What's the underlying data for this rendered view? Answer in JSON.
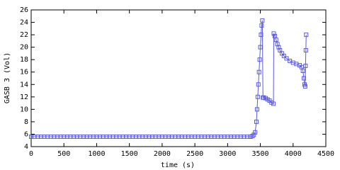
{
  "chart_data": {
    "type": "line",
    "marker": "square",
    "color": "#5a5ae6",
    "x_label": "time (s)",
    "y_label": "GASB 3 (Vol)",
    "xlim": [
      0,
      4500
    ],
    "xticks": [
      0,
      500,
      1000,
      1500,
      2000,
      2500,
      3000,
      3500,
      4000,
      4500
    ],
    "ylim": [
      4,
      26
    ],
    "yticks": [
      4,
      6,
      8,
      10,
      12,
      14,
      16,
      18,
      20,
      22,
      24,
      26
    ],
    "x": [
      0,
      50,
      100,
      150,
      200,
      250,
      300,
      350,
      400,
      450,
      500,
      550,
      600,
      650,
      700,
      750,
      800,
      850,
      900,
      950,
      1000,
      1050,
      1100,
      1150,
      1200,
      1250,
      1300,
      1350,
      1400,
      1450,
      1500,
      1550,
      1600,
      1650,
      1700,
      1750,
      1800,
      1850,
      1900,
      1950,
      2000,
      2050,
      2100,
      2150,
      2200,
      2250,
      2300,
      2350,
      2400,
      2450,
      2500,
      2550,
      2600,
      2650,
      2700,
      2750,
      2800,
      2850,
      2900,
      2950,
      3000,
      3050,
      3100,
      3150,
      3200,
      3250,
      3300,
      3350,
      3380,
      3400,
      3420,
      3440,
      3450,
      3460,
      3470,
      3480,
      3490,
      3500,
      3510,
      3520,
      3530,
      3540,
      3550,
      3580,
      3610,
      3640,
      3670,
      3700,
      3705,
      3720,
      3740,
      3760,
      3780,
      3800,
      3830,
      3860,
      3900,
      3950,
      4000,
      4050,
      4100,
      4130,
      4150,
      4165,
      4175,
      4185,
      4190,
      4195,
      4200
    ],
    "values": [
      5.6,
      5.6,
      5.6,
      5.6,
      5.6,
      5.6,
      5.6,
      5.6,
      5.6,
      5.6,
      5.6,
      5.6,
      5.6,
      5.6,
      5.6,
      5.6,
      5.6,
      5.6,
      5.6,
      5.6,
      5.6,
      5.6,
      5.6,
      5.6,
      5.6,
      5.6,
      5.6,
      5.6,
      5.6,
      5.6,
      5.6,
      5.6,
      5.6,
      5.6,
      5.6,
      5.6,
      5.6,
      5.6,
      5.6,
      5.6,
      5.6,
      5.6,
      5.6,
      5.6,
      5.6,
      5.6,
      5.6,
      5.6,
      5.6,
      5.6,
      5.6,
      5.6,
      5.6,
      5.6,
      5.6,
      5.6,
      5.6,
      5.6,
      5.6,
      5.6,
      5.6,
      5.6,
      5.6,
      5.6,
      5.6,
      5.6,
      5.6,
      5.6,
      5.7,
      5.9,
      6.3,
      8,
      10,
      12,
      14,
      16,
      18,
      20,
      22,
      23.5,
      24.3,
      11.9,
      11.9,
      11.8,
      11.6,
      11.4,
      11.1,
      10.9,
      22.2,
      21.8,
      21.2,
      20.5,
      20,
      19.5,
      19,
      18.6,
      18.2,
      17.8,
      17.5,
      17.3,
      17.1,
      16.8,
      16.2,
      15,
      14,
      13.7,
      17,
      19.5,
      22
    ]
  }
}
